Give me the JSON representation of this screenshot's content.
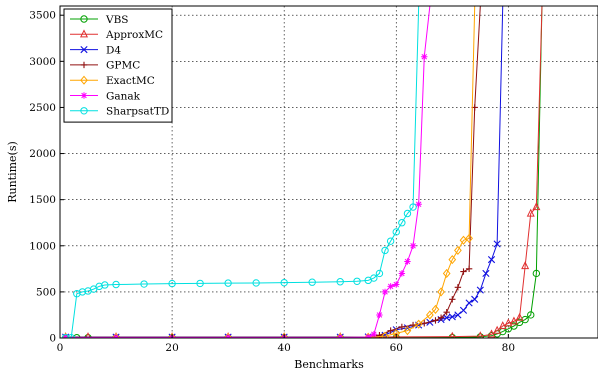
{
  "chart_data": {
    "type": "line",
    "title": "",
    "xlabel": "Benchmarks",
    "ylabel": "Runtime(s)",
    "xlim": [
      0,
      96
    ],
    "ylim": [
      0,
      3600
    ],
    "xticks": [
      0,
      20,
      40,
      60,
      80
    ],
    "yticks": [
      0,
      500,
      1000,
      1500,
      2000,
      2500,
      3000,
      3500
    ],
    "grid": true,
    "legend_position": "top-left",
    "series": [
      {
        "name": "VBS",
        "color": "#00a000",
        "marker": "circle",
        "x": [
          1,
          3,
          5,
          10,
          20,
          30,
          40,
          50,
          60,
          70,
          75,
          77,
          78,
          79,
          80,
          81,
          82,
          83,
          84,
          85,
          86
        ],
        "y": [
          3,
          3,
          3,
          3,
          3,
          3,
          3,
          3,
          3,
          5,
          12,
          25,
          45,
          70,
          100,
          130,
          170,
          200,
          250,
          700,
          3600
        ]
      },
      {
        "name": "ApproxMC",
        "color": "#e03030",
        "marker": "triangle",
        "x": [
          1,
          5,
          10,
          20,
          30,
          40,
          50,
          60,
          70,
          75,
          77,
          78,
          79,
          80,
          81,
          82,
          83,
          84,
          85,
          86
        ],
        "y": [
          10,
          10,
          10,
          10,
          10,
          10,
          10,
          12,
          15,
          20,
          40,
          80,
          130,
          160,
          180,
          220,
          780,
          1350,
          1420,
          3600
        ]
      },
      {
        "name": "D4",
        "color": "#1010e0",
        "marker": "x",
        "x": [
          1,
          10,
          20,
          30,
          40,
          50,
          55,
          58,
          60,
          62,
          64,
          66,
          68,
          69,
          70,
          71,
          72,
          73,
          74,
          75,
          76,
          77,
          78,
          79
        ],
        "y": [
          10,
          10,
          10,
          10,
          10,
          10,
          12,
          30,
          90,
          110,
          140,
          170,
          200,
          220,
          230,
          250,
          300,
          380,
          420,
          520,
          700,
          850,
          1020,
          3600
        ]
      },
      {
        "name": "GPMC",
        "color": "#901010",
        "marker": "plus",
        "x": [
          1,
          10,
          20,
          30,
          40,
          50,
          55,
          57,
          59,
          61,
          63,
          65,
          67,
          68,
          69,
          70,
          71,
          72,
          73,
          74,
          75
        ],
        "y": [
          8,
          8,
          8,
          8,
          8,
          8,
          10,
          30,
          80,
          120,
          140,
          160,
          190,
          220,
          280,
          420,
          550,
          720,
          750,
          2500,
          3600
        ]
      },
      {
        "name": "ExactMC",
        "color": "#ffa500",
        "marker": "diamond",
        "x": [
          1,
          10,
          20,
          30,
          40,
          50,
          55,
          58,
          60,
          62,
          64,
          66,
          67,
          68,
          69,
          70,
          71,
          72,
          73,
          74
        ],
        "y": [
          5,
          5,
          5,
          5,
          5,
          5,
          8,
          20,
          50,
          80,
          150,
          250,
          310,
          500,
          700,
          850,
          950,
          1060,
          1080,
          3600
        ]
      },
      {
        "name": "Ganak",
        "color": "#ff00ff",
        "marker": "star",
        "x": [
          1,
          10,
          20,
          30,
          40,
          50,
          55,
          56,
          57,
          58,
          59,
          60,
          61,
          62,
          63,
          64,
          65,
          66
        ],
        "y": [
          6,
          6,
          6,
          6,
          6,
          6,
          10,
          40,
          250,
          500,
          560,
          580,
          700,
          830,
          1000,
          1450,
          3050,
          3600
        ]
      },
      {
        "name": "SharpsatTD",
        "color": "#00e0e0",
        "marker": "circle",
        "x": [
          1,
          2,
          3,
          4,
          5,
          6,
          7,
          8,
          10,
          15,
          20,
          25,
          30,
          35,
          40,
          45,
          50,
          53,
          55,
          56,
          57,
          58,
          59,
          60,
          61,
          62,
          63,
          64
        ],
        "y": [
          3,
          3,
          480,
          500,
          510,
          530,
          560,
          575,
          580,
          585,
          590,
          592,
          595,
          597,
          600,
          605,
          610,
          615,
          625,
          650,
          700,
          950,
          1050,
          1150,
          1250,
          1350,
          1420,
          3600
        ]
      }
    ]
  }
}
